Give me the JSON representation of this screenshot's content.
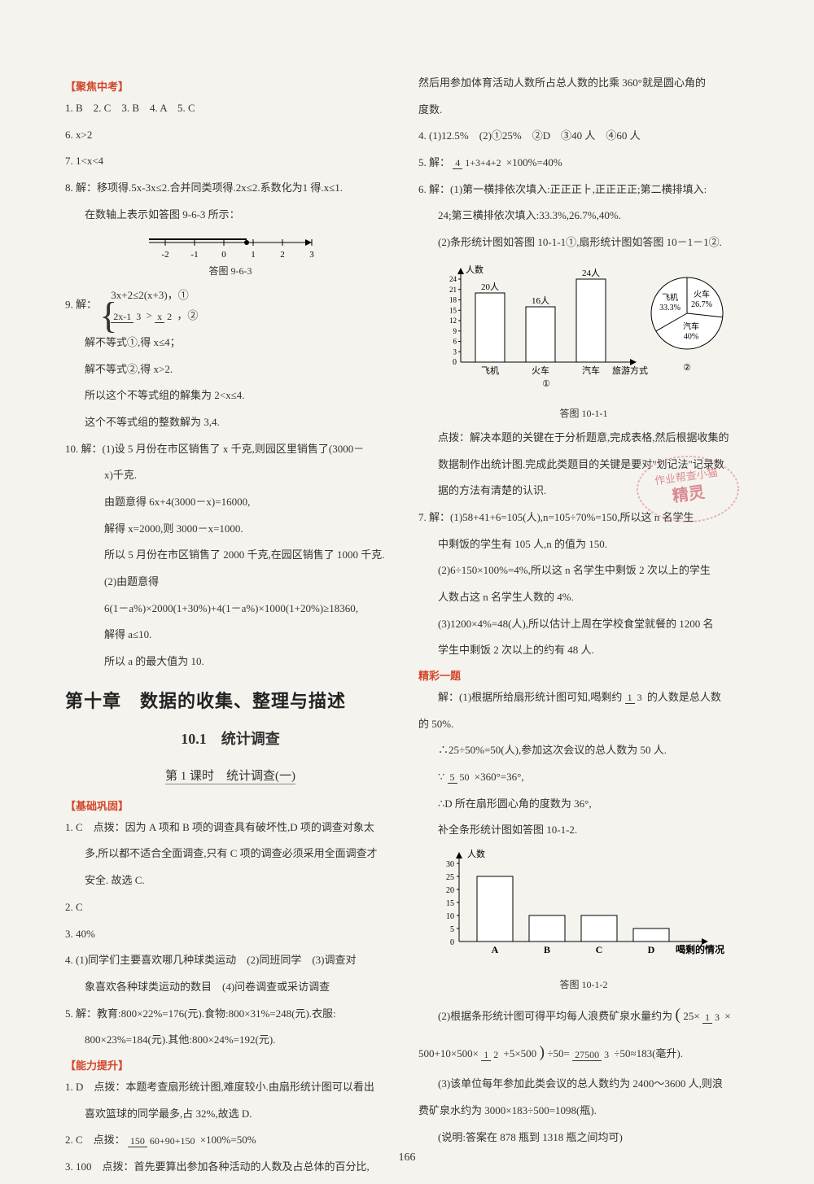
{
  "page_number": "166",
  "colors": {
    "accent": "#d1462a",
    "text": "#333333",
    "bg": "#f5f3ee",
    "axis": "#000000"
  },
  "left": {
    "sec_focus": "【聚焦中考】",
    "q1_5": "1. B　2. C　3. B　4. A　5. C",
    "q6": "6. x>2",
    "q7": "7. 1<x<4",
    "q8a": "8. 解：移项得.5x-3x≤2.合并同类项得.2x≤2.系数化为1 得.x≤1.",
    "q8b": "在数轴上表示如答图 9-6-3 所示：",
    "numline": {
      "ticks": [
        "-2",
        "-1",
        "0",
        "1",
        "2",
        "3"
      ],
      "marker_at": 3,
      "axis_color": "#000000"
    },
    "cap963": "答图 9-6-3",
    "q9a": "9. 解：",
    "q9_eq1": "3x+2≤2(x+3)，①",
    "q9_eq2_pre": "",
    "q9_eq2_n": "2x-1",
    "q9_eq2_d": "3",
    "q9_eq2_mid": " > ",
    "q9_eq2_n2": "x",
    "q9_eq2_d2": "2",
    "q9_eq2_post": "，②",
    "q9b": "解不等式①,得 x≤4；",
    "q9c": "解不等式②,得 x>2.",
    "q9d": "所以这个不等式组的解集为 2<x≤4.",
    "q9e": "这个不等式组的整数解为 3,4.",
    "q10a": "10. 解：(1)设 5 月份在市区销售了 x 千克,则园区里销售了(3000－",
    "q10a2": "x)千克.",
    "q10b": "由题意得 6x+4(3000－x)=16000,",
    "q10c": "解得 x=2000,则 3000－x=1000.",
    "q10d": "所以 5 月份在市区销售了 2000 千克,在园区销售了 1000 千克.",
    "q10e": "(2)由题意得",
    "q10f": "6(1－a%)×2000(1+30%)+4(1－a%)×1000(1+20%)≥18360,",
    "q10g": "解得 a≤10.",
    "q10h": "所以 a 的最大值为 10.",
    "chapter": "第十章　数据的收集、整理与描述",
    "sub1": "10.1　统计调查",
    "sub2": "第 1 课时　统计调查(一)",
    "sec_base": "【基础巩固】",
    "b1a": "1. C　点拨：因为 A 项和 B 项的调查具有破坏性,D 项的调查对象太",
    "b1b": "多,所以都不适合全面调查,只有 C 项的调查必须采用全面调查才",
    "b1c": "安全. 故选 C.",
    "b2": "2. C",
    "b3": "3. 40%",
    "b4a": "4. (1)同学们主要喜欢哪几种球类运动　(2)同班同学　(3)调查对",
    "b4b": "象喜欢各种球类运动的数目　(4)问卷调查或采访调查",
    "b5a": "5. 解：教育:800×22%=176(元).食物:800×31%=248(元).衣服:",
    "b5b": "800×23%=184(元).其他:800×24%=192(元).",
    "sec_ability": "【能力提升】",
    "a1a": "1. D　点拨：本题考查扇形统计图,难度较小.由扇形统计图可以看出",
    "a1b": "喜欢篮球的同学最多,占 32%,故选 D.",
    "a2a": "2. C　点拨：",
    "a2_n": "150",
    "a2_d": "60+90+150",
    "a2b": "×100%=50%",
    "a3": "3. 100　点拨：首先要算出参加各种活动的人数及占总体的百分比,"
  },
  "right": {
    "r1a": "然后用参加体育活动人数所占总人数的比乘 360°就是圆心角的",
    "r1b": "度数.",
    "r4": "4. (1)12.5%　(2)①25%　②D　③40 人　④60 人",
    "r5a": "5. 解：",
    "r5_n": "4",
    "r5_d": "1+3+4+2",
    "r5b": "×100%=40%",
    "r6a": "6. 解：(1)第一横排依次填入:正正正⺊,正正正正;第二横排填入:",
    "r6b": "24;第三横排依次填入:33.3%,26.7%,40%.",
    "r6c": "(2)条形统计图如答图 10-1-1①,扇形统计图如答图 10－1－1②.",
    "bar1011": {
      "type": "bar",
      "ylabel": "人数",
      "categories": [
        "飞机",
        "火车",
        "汽车"
      ],
      "values": [
        20,
        16,
        24
      ],
      "value_labels": [
        "20人",
        "16人",
        "24人"
      ],
      "ymax": 24,
      "ytick_step": 3,
      "bar_color": "#ffffff",
      "bar_stroke": "#000000",
      "axis_color": "#000000",
      "xlabel": "旅游方式",
      "sub_label": "①"
    },
    "pie1011": {
      "type": "pie",
      "slices": [
        {
          "label": "火车",
          "pct": 26.7,
          "color": "#ffffff"
        },
        {
          "label": "汽车",
          "pct": 40,
          "color": "#ffffff"
        },
        {
          "label": "飞机",
          "pct": 33.3,
          "color": "#ffffff"
        }
      ],
      "stroke": "#000000",
      "sub_label": "②"
    },
    "cap1011": "答图 10-1-1",
    "r6d": "点拨：解决本题的关键在于分析题意,完成表格,然后根据收集的",
    "r6e": "数据制作出统计图.完成此类题目的关键是要对\"划记法\"记录数",
    "r6f": "据的方法有清楚的认识.",
    "r7a": "7. 解：(1)58+41+6=105(人),n=105÷70%=150,所以这 n 名学生",
    "r7b": "中剩饭的学生有 105 人,n 的值为 150.",
    "r7c": "(2)6÷150×100%=4%,所以这 n 名学生中剩饭 2 次以上的学生",
    "r7d": "人数占这 n 名学生人数的 4%.",
    "r7e": "(3)1200×4%=48(人),所以估计上周在学校食堂就餐的 1200 名",
    "r7f": "学生中剩饭 2 次以上的约有 48 人.",
    "sec_brilliant": "精彩一题",
    "p1a": "解：(1)根据所给扇形统计图可知,喝剩约",
    "p1_n": "1",
    "p1_d": "3",
    "p1b": "的人数是总人数",
    "p1c": "的 50%.",
    "p2": "∴25÷50%=50(人),参加这次会议的总人数为 50 人.",
    "p3a": "∵",
    "p3_n": "5",
    "p3_d": "50",
    "p3b": "×360°=36°,",
    "p4": "∴D 所在扇形圆心角的度数为 36°,",
    "p5": "补全条形统计图如答图 10-1-2.",
    "bar1012": {
      "type": "bar",
      "ylabel": "人数",
      "categories": [
        "A",
        "B",
        "C",
        "D"
      ],
      "values": [
        25,
        10,
        10,
        5
      ],
      "ymax": 30,
      "ytick_step": 5,
      "bar_color": "#ffffff",
      "bar_stroke": "#000000",
      "axis_color": "#000000",
      "xlabel": "喝剩的情况"
    },
    "cap1012": "答图 10-1-2",
    "p6a": "(2)根据条形统计图可得平均每人浪费矿泉水量约为",
    "p6open": "(",
    "p6t1": "25×",
    "p6_n1": "1",
    "p6_d1": "3",
    "p6t2": "×",
    "p7a": "500+10×500×",
    "p7_n": "1",
    "p7_d": "2",
    "p7b": "+5×500",
    "p7close": ")",
    "p7c": "÷50=",
    "p7_n2": "27500",
    "p7_d2": "3",
    "p7d": "÷50≈183(毫升).",
    "p8a": "(3)该单位每年参加此类会议的总人数约为 2400～3600 人,则浪",
    "p8b": "费矿泉水约为 3000×183÷500=1098(瓶).",
    "p9": "(说明:答案在 878 瓶到 1318 瓶之间均可)"
  },
  "watermark": {
    "line1": "作业帮查小猫",
    "line2": "精灵",
    "color": "#c9475a"
  }
}
